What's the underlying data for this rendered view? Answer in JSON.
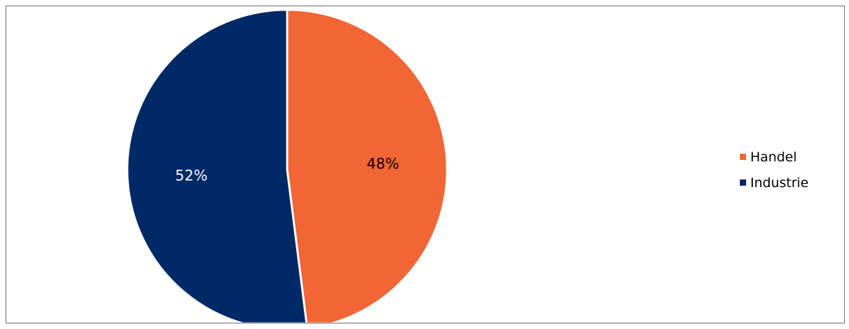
{
  "chart_data": {
    "type": "pie",
    "categories": [
      "Handel",
      "Industrie"
    ],
    "values": [
      48,
      52
    ],
    "data_labels": [
      "48%",
      "52%"
    ],
    "colors": [
      "#F26535",
      "#002A66"
    ],
    "label_colors": [
      "#000000",
      "#ffffff"
    ],
    "slice_border_color": "#ffffff",
    "frame_border_color": "#6b6b6b",
    "start_angle_deg": 0,
    "direction": "clockwise",
    "legend": {
      "position": "right",
      "entries": [
        "Handel",
        "Industrie"
      ]
    }
  }
}
